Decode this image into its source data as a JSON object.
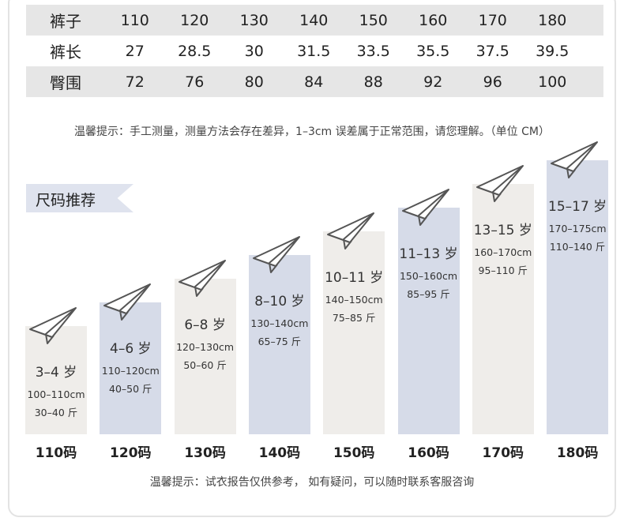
{
  "table": {
    "rows": [
      {
        "header": "裤子",
        "values": [
          "110",
          "120",
          "130",
          "140",
          "150",
          "160",
          "170",
          "180"
        ]
      },
      {
        "header": "裤长",
        "values": [
          "27",
          "28.5",
          "30",
          "31.5",
          "33.5",
          "35.5",
          "37.5",
          "39.5"
        ]
      },
      {
        "header": "臀围",
        "values": [
          "72",
          "76",
          "80",
          "84",
          "88",
          "92",
          "96",
          "100"
        ]
      }
    ]
  },
  "tip_top": "温馨提示：手工测量，测量方法会存在差异，1–3cm 误差属于正常范围，请您理解。（单位 CM）",
  "recommend_title": "尺码推荐",
  "sizes": [
    {
      "label": "110码",
      "age": "3–4 岁",
      "height": "100–110cm",
      "weight": "30–40 斤",
      "level": 1,
      "color": "beige"
    },
    {
      "label": "120码",
      "age": "4–6 岁",
      "height": "110–120cm",
      "weight": "40–50 斤",
      "level": 2,
      "color": "blue"
    },
    {
      "label": "130码",
      "age": "6–8 岁",
      "height": "120–130cm",
      "weight": "50–60 斤",
      "level": 3,
      "color": "beige"
    },
    {
      "label": "140码",
      "age": "8–10 岁",
      "height": "130–140cm",
      "weight": "65–75 斤",
      "level": 4,
      "color": "blue"
    },
    {
      "label": "150码",
      "age": "10–11 岁",
      "height": "140–150cm",
      "weight": "75–85 斤",
      "level": 5,
      "color": "beige"
    },
    {
      "label": "160码",
      "age": "11–13 岁",
      "height": "150–160cm",
      "weight": "85–95 斤",
      "level": 6,
      "color": "blue"
    },
    {
      "label": "170码",
      "age": "13–15 岁",
      "height": "160–170cm",
      "weight": "95–110 斤",
      "level": 7,
      "color": "beige"
    },
    {
      "label": "180码",
      "age": "15–17 岁",
      "height": "170–175cm",
      "weight": "110–140 斤",
      "level": 8,
      "color": "blue"
    }
  ],
  "tip_bottom": "温馨提示：试衣报告仅供参考，  如有疑问，可以随时联系客服咨询",
  "colors": {
    "beige": "#efedea",
    "blue": "#d6dbe8",
    "row_gray": "#e6e6e6"
  },
  "icons": {
    "plane": "paper-plane-icon"
  }
}
